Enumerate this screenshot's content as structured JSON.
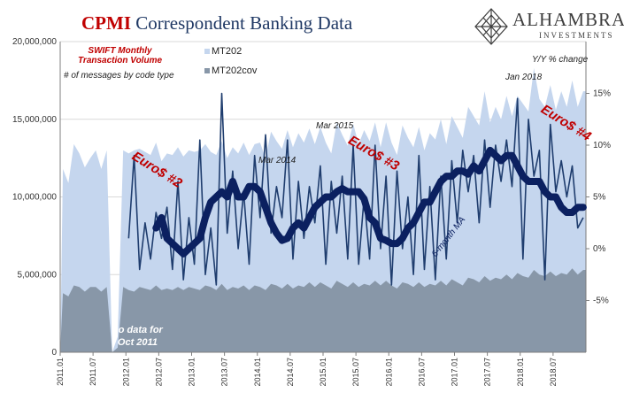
{
  "title": {
    "part1": "CPMI",
    "part2": "Correspondent Banking Data"
  },
  "logo": {
    "name": "ALHAMBRA",
    "sub": "INVESTMENTS"
  },
  "annotations": {
    "swift_line1": "SWIFT Monthly",
    "swift_line2": "Transaction Volume",
    "swift_line3": "# of messages by code type",
    "yy_change": "Y/Y % change",
    "no_data_line1": "no data for",
    "no_data_line2": "Oct 2011",
    "euro2": "Euro$ #2",
    "euro3": "Euro$ #3",
    "euro4": "Euro$ #4",
    "mar2014": "Mar 2014",
    "mar2015": "Mar 2015",
    "jan2018": "Jan 2018",
    "ma": "6-month MA"
  },
  "colors": {
    "mt202": "#c5d6ee",
    "mt202cov": "#8897a8",
    "yoy": "#1f3d6e",
    "ma": "#0b2060",
    "title_red": "#c00000",
    "title_blue": "#1f3864"
  },
  "chart_data": {
    "type": "area",
    "title": "CPMI Correspondent Banking Data",
    "x": [
      "2011.01",
      "2011.02",
      "2011.03",
      "2011.04",
      "2011.05",
      "2011.06",
      "2011.07",
      "2011.08",
      "2011.09",
      "2011.10",
      "2011.11",
      "2011.12",
      "2012.01",
      "2012.02",
      "2012.03",
      "2012.04",
      "2012.05",
      "2012.06",
      "2012.07",
      "2012.08",
      "2012.09",
      "2012.10",
      "2012.11",
      "2012.12",
      "2013.01",
      "2013.02",
      "2013.03",
      "2013.04",
      "2013.05",
      "2013.06",
      "2013.07",
      "2013.08",
      "2013.09",
      "2013.10",
      "2013.11",
      "2013.12",
      "2014.01",
      "2014.02",
      "2014.03",
      "2014.04",
      "2014.05",
      "2014.06",
      "2014.07",
      "2014.08",
      "2014.09",
      "2014.10",
      "2014.11",
      "2014.12",
      "2015.01",
      "2015.02",
      "2015.03",
      "2015.04",
      "2015.05",
      "2015.06",
      "2015.07",
      "2015.08",
      "2015.09",
      "2015.10",
      "2015.11",
      "2015.12",
      "2016.01",
      "2016.02",
      "2016.03",
      "2016.04",
      "2016.05",
      "2016.06",
      "2016.07",
      "2016.08",
      "2016.09",
      "2016.10",
      "2016.11",
      "2016.12",
      "2017.01",
      "2017.02",
      "2017.03",
      "2017.04",
      "2017.05",
      "2017.06",
      "2017.07",
      "2017.08",
      "2017.09",
      "2017.10",
      "2017.11",
      "2017.12",
      "2018.01",
      "2018.02",
      "2018.03",
      "2018.04",
      "2018.05",
      "2018.06",
      "2018.07",
      "2018.08",
      "2018.09",
      "2018.10",
      "2018.11",
      "2018.12"
    ],
    "x_ticks": [
      "2011.01",
      "2011.07",
      "2012.01",
      "2012.07",
      "2013.01",
      "2013.07",
      "2014.01",
      "2014.07",
      "2015.01",
      "2015.07",
      "2016.01",
      "2016.07",
      "2017.01",
      "2017.07",
      "2018.01",
      "2018.07"
    ],
    "ylim_left": [
      0,
      20000000
    ],
    "yticks_left": [
      "0",
      "5,000,000",
      "10,000,000",
      "15,000,000",
      "20,000,000"
    ],
    "ylim_right": [
      -10,
      20
    ],
    "yticks_right": [
      "-5%",
      "0%",
      "5%",
      "10%",
      "15%"
    ],
    "series": [
      {
        "name": "MT202",
        "axis": "left",
        "kind": "area",
        "values": [
          11800000,
          10900000,
          13400000,
          12800000,
          11900000,
          12500000,
          13000000,
          11800000,
          13000000,
          null,
          1000000,
          13000000,
          12800000,
          13000000,
          13100000,
          12900000,
          12700000,
          13500000,
          12300000,
          12800000,
          12700000,
          13200000,
          12600000,
          13000000,
          12900000,
          13000000,
          13400000,
          12900000,
          12700000,
          13600000,
          12500000,
          13200000,
          12800000,
          13500000,
          12700000,
          13400000,
          13500000,
          12500000,
          14200000,
          13600000,
          13100000,
          14300000,
          13200000,
          14100000,
          13500000,
          14400000,
          13400000,
          14500000,
          13500000,
          12800000,
          14800000,
          14000000,
          13300000,
          14700000,
          13400000,
          14300000,
          13600000,
          14800000,
          13200000,
          14800000,
          13500000,
          12700000,
          14600000,
          13800000,
          13200000,
          14500000,
          13000000,
          14100000,
          13700000,
          15000000,
          13400000,
          15200000,
          14500000,
          13800000,
          15800000,
          15200000,
          14600000,
          16800000,
          14800000,
          15800000,
          15000000,
          16500000,
          15200000,
          16500000,
          16000000,
          15500000,
          18300000,
          16300000,
          15800000,
          17200000,
          15600000,
          16800000,
          15800000,
          17500000,
          15800000,
          16800000
        ]
      },
      {
        "name": "MT202cov",
        "axis": "left",
        "kind": "area",
        "values": [
          3800000,
          3600000,
          4300000,
          4200000,
          3900000,
          4200000,
          4200000,
          3900000,
          4200000,
          null,
          300000,
          4200000,
          4000000,
          3900000,
          4200000,
          4100000,
          4000000,
          4300000,
          4000000,
          4100000,
          4000000,
          4200000,
          4000000,
          4200000,
          4100000,
          4000000,
          4300000,
          4200000,
          4000000,
          4400000,
          4000000,
          4200000,
          4100000,
          4300000,
          4000000,
          4300000,
          4200000,
          4000000,
          4400000,
          4300000,
          4100000,
          4400000,
          4100000,
          4300000,
          4200000,
          4500000,
          4200000,
          4500000,
          4300000,
          4100000,
          4600000,
          4400000,
          4200000,
          4500000,
          4200000,
          4400000,
          4300000,
          4600000,
          4300000,
          4600000,
          4300000,
          4100000,
          4500000,
          4400000,
          4200000,
          4500000,
          4200000,
          4400000,
          4300000,
          4600000,
          4300000,
          4700000,
          4500000,
          4300000,
          4800000,
          4700000,
          4500000,
          4900000,
          4600000,
          4800000,
          4700000,
          5000000,
          4700000,
          5100000,
          4900000,
          4800000,
          5300000,
          5000000,
          4900000,
          5200000,
          4900000,
          5100000,
          5000000,
          5400000,
          5000000,
          5300000
        ]
      },
      {
        "name": "Y/Y % change",
        "axis": "right",
        "kind": "line",
        "values": [
          null,
          null,
          null,
          null,
          null,
          null,
          null,
          null,
          null,
          null,
          null,
          null,
          1.0,
          9.0,
          -2.0,
          2.5,
          -1.0,
          3.5,
          1.0,
          4.0,
          -2.0,
          6.5,
          -3.0,
          3.0,
          -1.5,
          10.5,
          -2.5,
          2.0,
          -3.5,
          15.0,
          1.5,
          7.5,
          0.0,
          5.5,
          -1.5,
          9.0,
          3.0,
          11.0,
          1.5,
          6.0,
          3.0,
          10.5,
          -1.0,
          6.5,
          1.0,
          6.0,
          2.5,
          8.0,
          -1.5,
          6.5,
          1.5,
          7.0,
          -1.0,
          10.0,
          -1.5,
          5.0,
          -1.0,
          10.0,
          0.0,
          7.0,
          -3.5,
          7.5,
          0.0,
          5.0,
          -2.5,
          9.0,
          -2.0,
          6.0,
          -3.0,
          7.0,
          -1.0,
          8.5,
          2.5,
          9.5,
          5.5,
          9.0,
          2.5,
          10.5,
          4.0,
          10.0,
          6.5,
          10.5,
          6.0,
          14.5,
          -1.0,
          12.5,
          7.0,
          9.5,
          -3.0,
          12.0,
          5.5,
          8.5,
          5.0,
          8.0,
          2.0,
          3.0
        ]
      },
      {
        "name": "6-month MA",
        "axis": "right",
        "kind": "line",
        "values": [
          null,
          null,
          null,
          null,
          null,
          null,
          null,
          null,
          null,
          null,
          null,
          null,
          null,
          null,
          null,
          null,
          null,
          2.0,
          3.0,
          1.0,
          0.5,
          0.0,
          -0.5,
          0.0,
          0.5,
          1.0,
          3.0,
          4.5,
          5.0,
          5.5,
          5.0,
          6.5,
          5.0,
          5.0,
          6.0,
          6.0,
          5.5,
          4.0,
          2.5,
          1.5,
          0.8,
          1.0,
          2.0,
          2.5,
          2.0,
          3.0,
          4.0,
          4.5,
          5.0,
          5.0,
          5.5,
          5.8,
          5.5,
          5.5,
          5.5,
          4.8,
          3.0,
          2.5,
          1.0,
          0.8,
          0.5,
          0.5,
          1.0,
          2.0,
          2.5,
          3.5,
          4.5,
          4.5,
          5.5,
          6.5,
          7.0,
          7.0,
          7.5,
          7.5,
          7.2,
          8.0,
          7.5,
          8.5,
          9.5,
          9.0,
          8.5,
          9.0,
          9.0,
          8.0,
          7.0,
          6.5,
          6.5,
          6.5,
          5.5,
          5.0,
          5.0,
          4.0,
          3.5,
          3.5,
          4.0,
          4.0
        ]
      }
    ]
  }
}
